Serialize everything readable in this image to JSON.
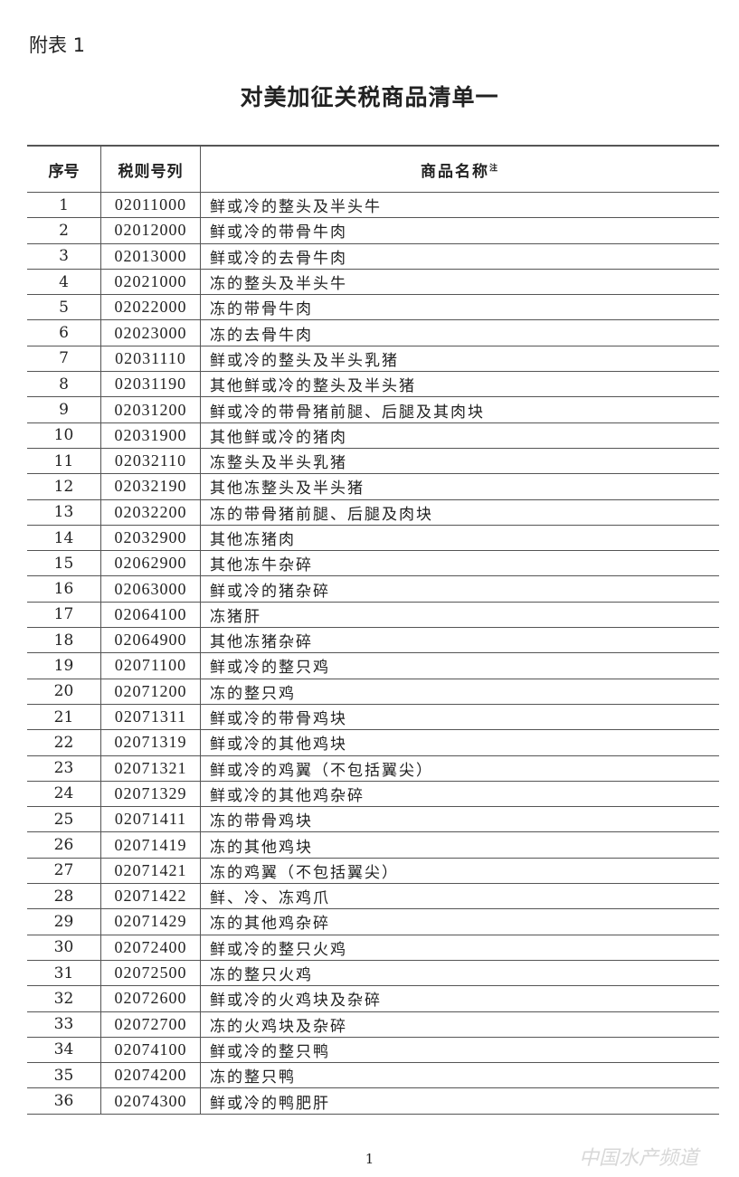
{
  "annex_label": "附表 1",
  "title": "对美加征关税商品清单一",
  "table": {
    "headers": {
      "no": "序号",
      "code": "税则号列",
      "name": "商品名称",
      "name_note": "注"
    },
    "rows": [
      [
        "1",
        "02011000",
        "鲜或冷的整头及半头牛"
      ],
      [
        "2",
        "02012000",
        "鲜或冷的带骨牛肉"
      ],
      [
        "3",
        "02013000",
        "鲜或冷的去骨牛肉"
      ],
      [
        "4",
        "02021000",
        "冻的整头及半头牛"
      ],
      [
        "5",
        "02022000",
        "冻的带骨牛肉"
      ],
      [
        "6",
        "02023000",
        "冻的去骨牛肉"
      ],
      [
        "7",
        "02031110",
        "鲜或冷的整头及半头乳猪"
      ],
      [
        "8",
        "02031190",
        "其他鲜或冷的整头及半头猪"
      ],
      [
        "9",
        "02031200",
        "鲜或冷的带骨猪前腿、后腿及其肉块"
      ],
      [
        "10",
        "02031900",
        "其他鲜或冷的猪肉"
      ],
      [
        "11",
        "02032110",
        "冻整头及半头乳猪"
      ],
      [
        "12",
        "02032190",
        "其他冻整头及半头猪"
      ],
      [
        "13",
        "02032200",
        "冻的带骨猪前腿、后腿及肉块"
      ],
      [
        "14",
        "02032900",
        "其他冻猪肉"
      ],
      [
        "15",
        "02062900",
        "其他冻牛杂碎"
      ],
      [
        "16",
        "02063000",
        "鲜或冷的猪杂碎"
      ],
      [
        "17",
        "02064100",
        "冻猪肝"
      ],
      [
        "18",
        "02064900",
        "其他冻猪杂碎"
      ],
      [
        "19",
        "02071100",
        "鲜或冷的整只鸡"
      ],
      [
        "20",
        "02071200",
        "冻的整只鸡"
      ],
      [
        "21",
        "02071311",
        "鲜或冷的带骨鸡块"
      ],
      [
        "22",
        "02071319",
        "鲜或冷的其他鸡块"
      ],
      [
        "23",
        "02071321",
        "鲜或冷的鸡翼（不包括翼尖）"
      ],
      [
        "24",
        "02071329",
        "鲜或冷的其他鸡杂碎"
      ],
      [
        "25",
        "02071411",
        "冻的带骨鸡块"
      ],
      [
        "26",
        "02071419",
        "冻的其他鸡块"
      ],
      [
        "27",
        "02071421",
        "冻的鸡翼（不包括翼尖）"
      ],
      [
        "28",
        "02071422",
        "鲜、冷、冻鸡爪"
      ],
      [
        "29",
        "02071429",
        "冻的其他鸡杂碎"
      ],
      [
        "30",
        "02072400",
        "鲜或冷的整只火鸡"
      ],
      [
        "31",
        "02072500",
        "冻的整只火鸡"
      ],
      [
        "32",
        "02072600",
        "鲜或冷的火鸡块及杂碎"
      ],
      [
        "33",
        "02072700",
        "冻的火鸡块及杂碎"
      ],
      [
        "34",
        "02074100",
        "鲜或冷的整只鸭"
      ],
      [
        "35",
        "02074200",
        "冻的整只鸭"
      ],
      [
        "36",
        "02074300",
        "鲜或冷的鸭肥肝"
      ]
    ]
  },
  "page_number": "1",
  "watermark": "中国水产频道"
}
